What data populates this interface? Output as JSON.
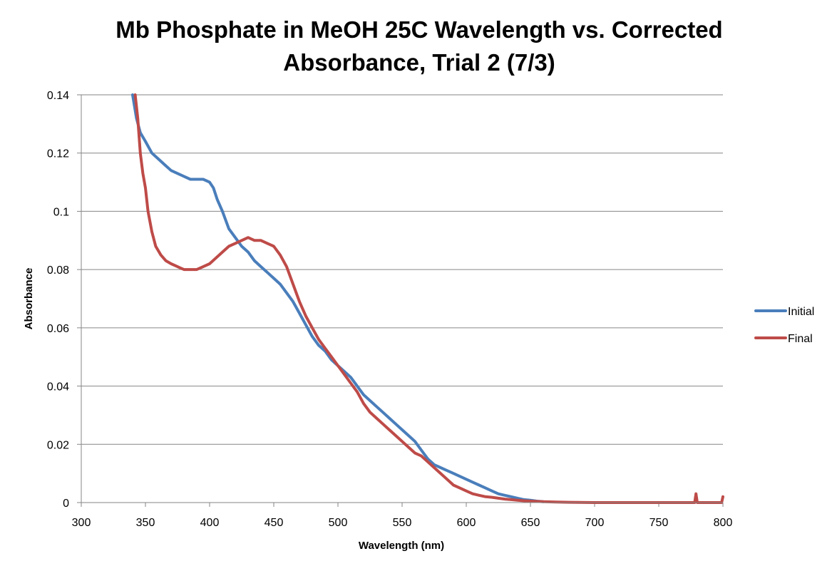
{
  "chart_data": {
    "type": "line",
    "title_lines": [
      "Mb Phosphate in MeOH 25C Wavelength vs. Corrected",
      "Absorbance, Trial 2 (7/3)"
    ],
    "xlabel": "Wavelength (nm)",
    "ylabel": "Absorbance",
    "xlim": [
      300,
      800
    ],
    "ylim": [
      0,
      0.14
    ],
    "x_ticks": [
      "300",
      "350",
      "400",
      "450",
      "500",
      "550",
      "600",
      "650",
      "700",
      "750",
      "800"
    ],
    "y_ticks": [
      "0",
      "0.02",
      "0.04",
      "0.06",
      "0.08",
      "0.1",
      "0.12",
      "0.14"
    ],
    "grid": true,
    "legend_position": "right",
    "series": [
      {
        "name": "Initial",
        "color": "#4a7ebb",
        "x": [
          340,
          343,
          346,
          350,
          355,
          360,
          365,
          370,
          375,
          380,
          385,
          390,
          395,
          400,
          403,
          406,
          410,
          415,
          420,
          425,
          430,
          435,
          440,
          445,
          450,
          455,
          460,
          465,
          470,
          475,
          480,
          485,
          490,
          495,
          500,
          505,
          510,
          515,
          520,
          525,
          530,
          535,
          540,
          545,
          550,
          555,
          560,
          565,
          570,
          575,
          580,
          585,
          590,
          595,
          600,
          605,
          610,
          615,
          620,
          625,
          630,
          635,
          640,
          645,
          650,
          655,
          660
        ],
        "y": [
          0.14,
          0.132,
          0.127,
          0.124,
          0.12,
          0.118,
          0.116,
          0.114,
          0.113,
          0.112,
          0.111,
          0.111,
          0.111,
          0.11,
          0.108,
          0.104,
          0.1,
          0.094,
          0.091,
          0.088,
          0.086,
          0.083,
          0.081,
          0.079,
          0.077,
          0.075,
          0.072,
          0.069,
          0.065,
          0.061,
          0.057,
          0.054,
          0.052,
          0.049,
          0.047,
          0.045,
          0.043,
          0.04,
          0.037,
          0.035,
          0.033,
          0.031,
          0.029,
          0.027,
          0.025,
          0.023,
          0.021,
          0.018,
          0.015,
          0.013,
          0.012,
          0.011,
          0.01,
          0.009,
          0.008,
          0.007,
          0.006,
          0.005,
          0.004,
          0.003,
          0.0025,
          0.002,
          0.0015,
          0.001,
          0.0008,
          0.0005,
          0.0003
        ]
      },
      {
        "name": "Final",
        "color": "#be4b48",
        "x": [
          342,
          344,
          346,
          348,
          350,
          352,
          355,
          358,
          362,
          366,
          370,
          375,
          380,
          385,
          390,
          395,
          400,
          405,
          410,
          415,
          420,
          425,
          430,
          435,
          440,
          445,
          450,
          455,
          460,
          465,
          470,
          475,
          480,
          485,
          490,
          495,
          500,
          505,
          510,
          515,
          520,
          525,
          530,
          535,
          540,
          545,
          550,
          555,
          560,
          565,
          570,
          575,
          580,
          585,
          590,
          595,
          600,
          605,
          610,
          615,
          620,
          625,
          630,
          635,
          640,
          645,
          650,
          660,
          670,
          680,
          700,
          720,
          740,
          760,
          778,
          779,
          780,
          790,
          799,
          800
        ],
        "y": [
          0.14,
          0.132,
          0.12,
          0.113,
          0.108,
          0.1,
          0.093,
          0.088,
          0.085,
          0.083,
          0.082,
          0.081,
          0.08,
          0.08,
          0.08,
          0.081,
          0.082,
          0.084,
          0.086,
          0.088,
          0.089,
          0.09,
          0.091,
          0.09,
          0.09,
          0.089,
          0.088,
          0.085,
          0.081,
          0.075,
          0.069,
          0.064,
          0.06,
          0.056,
          0.053,
          0.05,
          0.047,
          0.044,
          0.041,
          0.038,
          0.034,
          0.031,
          0.029,
          0.027,
          0.025,
          0.023,
          0.021,
          0.019,
          0.017,
          0.016,
          0.014,
          0.012,
          0.01,
          0.008,
          0.006,
          0.005,
          0.004,
          0.003,
          0.0025,
          0.002,
          0.0018,
          0.0015,
          0.0012,
          0.001,
          0.0008,
          0.0006,
          0.0005,
          0.0003,
          0.0002,
          0.0001,
          0.0,
          0.0,
          0.0,
          0.0,
          0.0,
          0.003,
          0.0,
          0.0,
          0.0,
          0.002
        ]
      }
    ]
  }
}
